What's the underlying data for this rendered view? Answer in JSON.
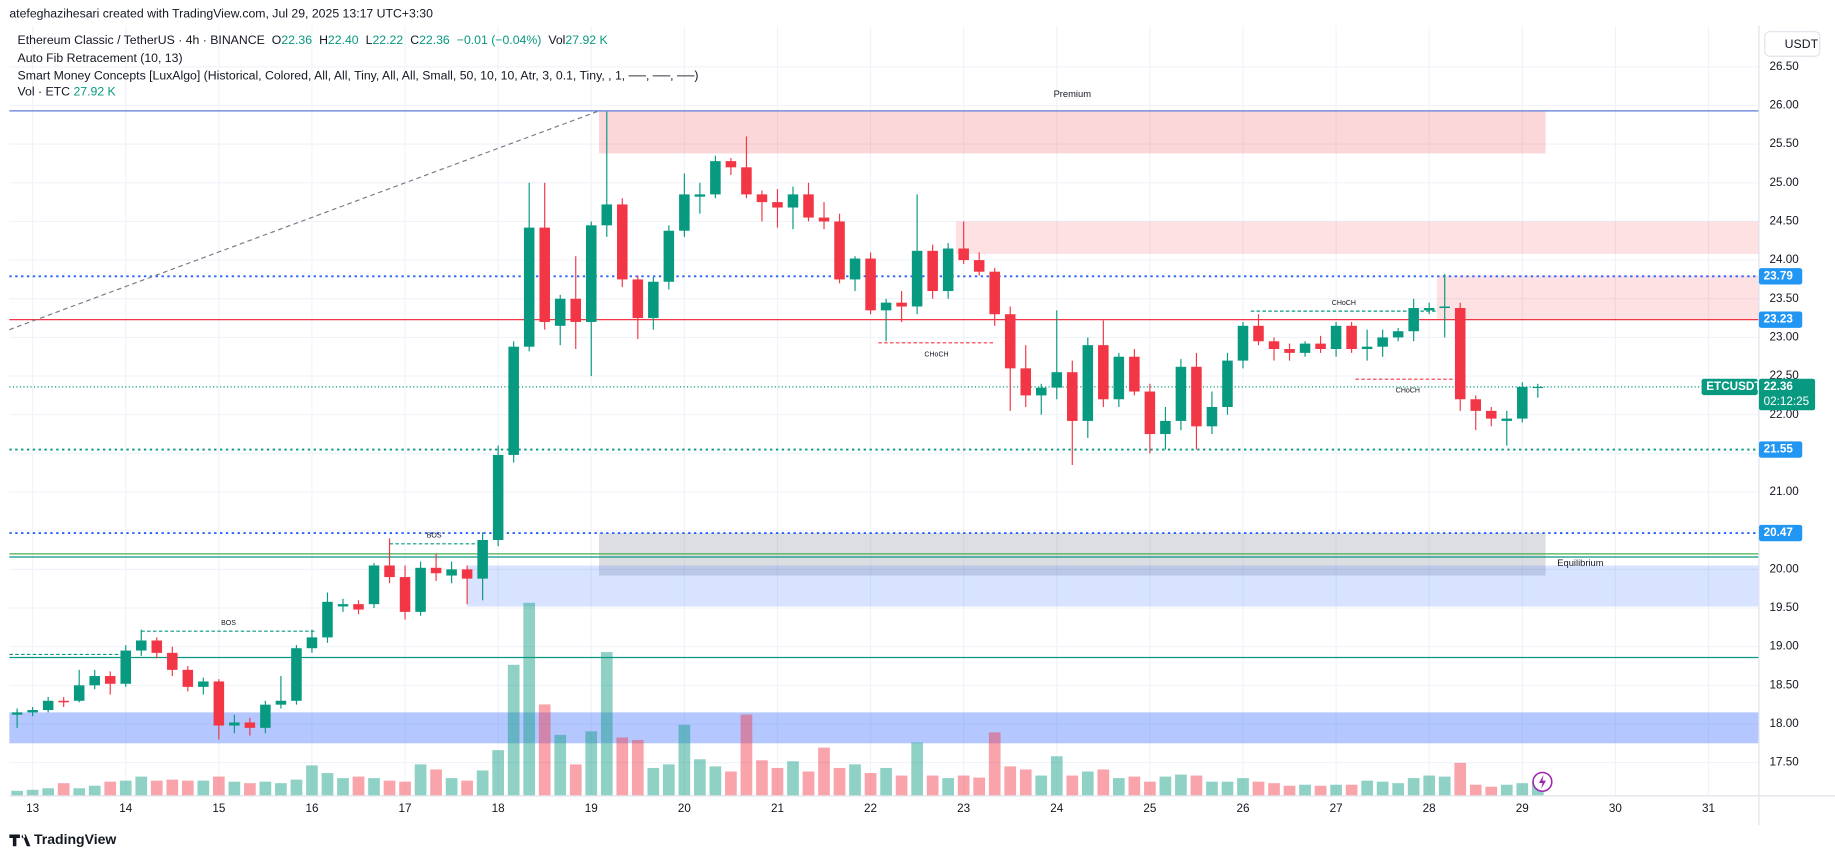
{
  "header": {
    "author_line": "atefeghazihesari created with TradingView.com, Jul 29, 2025 13:17 UTC+3:30",
    "symbol": "Ethereum Classic / TetherUS · 4h · BINANCE",
    "ohlc": [
      {
        "key": "O",
        "value": "22.36"
      },
      {
        "key": "H",
        "value": "22.40"
      },
      {
        "key": "L",
        "value": "22.22"
      },
      {
        "key": "C",
        "value": "22.36"
      }
    ],
    "change": "−0.01 (−0.04%)",
    "vol_key": "Vol",
    "vol_value": "27.92 K",
    "indicators": [
      "Auto Fib Retracement (10, 13)",
      "Smart Money Concepts [LuxAlgo] (Historical, Colored, All, All, Tiny, All, All, Small, 50, 10, 10, Atr, 3, 0.1, Tiny, , 1, ──, ──, ──)"
    ],
    "vol_indicator": {
      "name": "Vol · ETC",
      "value": "27.92 K"
    },
    "currency": "USDT",
    "footer": "TradingView"
  },
  "chart_data": {
    "type": "candlestick",
    "up_color": "#089981",
    "down_color": "#f23645",
    "tag_color": "#2196f3",
    "grid": true,
    "xlim": [
      -6,
      445
    ],
    "ylim": [
      17.07,
      27.03
    ],
    "xticks": [
      {
        "value": 0,
        "label": "13"
      },
      {
        "value": 24,
        "label": "14"
      },
      {
        "value": 48,
        "label": "15"
      },
      {
        "value": 72,
        "label": "16"
      },
      {
        "value": 96,
        "label": "17"
      },
      {
        "value": 120,
        "label": "18"
      },
      {
        "value": 144,
        "label": "19"
      },
      {
        "value": 168,
        "label": "20"
      },
      {
        "value": 192,
        "label": "21"
      },
      {
        "value": 216,
        "label": "22"
      },
      {
        "value": 240,
        "label": "23"
      },
      {
        "value": 264,
        "label": "24"
      },
      {
        "value": 288,
        "label": "25"
      },
      {
        "value": 312,
        "label": "26"
      },
      {
        "value": 336,
        "label": "27"
      },
      {
        "value": 360,
        "label": "28"
      },
      {
        "value": 384,
        "label": "29"
      },
      {
        "value": 408,
        "label": "30"
      },
      {
        "value": 432,
        "label": "31"
      }
    ],
    "yticks": [
      {
        "value": 17.5,
        "label": "17.50"
      },
      {
        "value": 18,
        "label": "18.00"
      },
      {
        "value": 18.5,
        "label": "18.50"
      },
      {
        "value": 19,
        "label": "19.00"
      },
      {
        "value": 19.5,
        "label": "19.50"
      },
      {
        "value": 20,
        "label": "20.00"
      },
      {
        "value": 20.5,
        "label": "20.50"
      },
      {
        "value": 21,
        "label": "21.00"
      },
      {
        "value": 21.5,
        "label": "21.50"
      },
      {
        "value": 22,
        "label": "22.00"
      },
      {
        "value": 22.5,
        "label": "22.50"
      },
      {
        "value": 23,
        "label": "23.00"
      },
      {
        "value": 23.5,
        "label": "23.50"
      },
      {
        "value": 24,
        "label": "24.00"
      },
      {
        "value": 24.5,
        "label": "24.50"
      },
      {
        "value": 25,
        "label": "25.00"
      },
      {
        "value": 25.5,
        "label": "25.50"
      },
      {
        "value": 26,
        "label": "26.00"
      },
      {
        "value": 26.5,
        "label": "26.50"
      }
    ],
    "x": [
      -4,
      0,
      4,
      8,
      12,
      16,
      20,
      24,
      28,
      32,
      36,
      40,
      44,
      48,
      52,
      56,
      60,
      64,
      68,
      72,
      76,
      80,
      84,
      88,
      92,
      96,
      100,
      104,
      108,
      112,
      116,
      120,
      124,
      128,
      132,
      136,
      140,
      144,
      148,
      152,
      156,
      160,
      164,
      168,
      172,
      176,
      180,
      184,
      188,
      192,
      196,
      200,
      204,
      208,
      212,
      216,
      220,
      224,
      228,
      232,
      236,
      240,
      244,
      248,
      252,
      256,
      260,
      264,
      268,
      272,
      276,
      280,
      284,
      288,
      292,
      296,
      300,
      304,
      308,
      312,
      316,
      320,
      324,
      328,
      332,
      336,
      340,
      344,
      348,
      352,
      356,
      360,
      364,
      368,
      372,
      376,
      380,
      384,
      388
    ],
    "open": [
      18.12,
      18.15,
      18.18,
      18.3,
      18.3,
      18.5,
      18.62,
      18.52,
      18.95,
      19.08,
      18.92,
      18.7,
      18.48,
      18.55,
      17.98,
      18.02,
      17.95,
      18.25,
      18.3,
      18.98,
      19.12,
      19.52,
      19.55,
      19.55,
      20.05,
      19.9,
      19.45,
      20.02,
      19.92,
      20.0,
      19.88,
      20.38,
      21.48,
      22.88,
      24.42,
      23.15,
      23.5,
      23.2,
      24.45,
      24.72,
      23.75,
      23.25,
      23.72,
      24.38,
      24.82,
      24.85,
      25.28,
      25.2,
      24.85,
      24.75,
      24.68,
      24.85,
      24.55,
      24.5,
      23.75,
      24.02,
      23.35,
      23.45,
      23.4,
      24.12,
      23.6,
      24.15,
      24.0,
      23.85,
      23.3,
      22.6,
      22.25,
      22.35,
      22.55,
      21.92,
      22.9,
      22.2,
      22.75,
      22.3,
      21.75,
      21.92,
      22.62,
      21.85,
      22.1,
      22.7,
      23.15,
      22.95,
      22.85,
      22.8,
      22.92,
      22.85,
      23.15,
      22.85,
      22.88,
      23.0,
      23.08,
      23.35,
      23.38,
      23.38,
      22.2,
      22.05,
      21.92,
      21.95,
      22.36
    ],
    "high": [
      18.2,
      18.22,
      18.35,
      18.35,
      18.7,
      18.7,
      18.68,
      19.02,
      19.22,
      19.12,
      19.0,
      18.75,
      18.6,
      18.58,
      18.12,
      18.08,
      18.3,
      18.62,
      19.02,
      19.22,
      19.7,
      19.62,
      19.6,
      20.08,
      20.4,
      20.05,
      20.1,
      20.2,
      20.1,
      20.05,
      20.48,
      21.6,
      22.95,
      25.0,
      25.0,
      23.55,
      24.05,
      24.5,
      25.92,
      24.8,
      23.8,
      23.78,
      24.45,
      25.12,
      25.0,
      25.35,
      25.32,
      25.6,
      24.9,
      24.92,
      24.95,
      25.0,
      24.75,
      24.6,
      24.05,
      24.1,
      23.5,
      23.6,
      24.85,
      24.2,
      24.22,
      24.5,
      24.1,
      23.9,
      23.4,
      22.9,
      22.4,
      23.35,
      22.7,
      23.0,
      23.22,
      22.8,
      22.85,
      22.4,
      22.1,
      22.72,
      22.8,
      22.3,
      22.8,
      23.2,
      23.3,
      23.0,
      22.92,
      22.95,
      23.02,
      23.2,
      23.2,
      23.1,
      23.1,
      23.12,
      23.5,
      23.45,
      23.82,
      23.45,
      22.25,
      22.1,
      22.05,
      22.42,
      22.4
    ],
    "low": [
      17.95,
      18.1,
      18.15,
      18.22,
      18.28,
      18.45,
      18.38,
      18.48,
      18.88,
      18.85,
      18.62,
      18.42,
      18.38,
      17.8,
      17.88,
      17.85,
      17.88,
      18.2,
      18.25,
      18.92,
      19.05,
      19.45,
      19.42,
      19.5,
      19.82,
      19.35,
      19.4,
      19.85,
      19.82,
      19.55,
      19.6,
      20.3,
      21.38,
      22.82,
      23.1,
      22.9,
      22.85,
      22.5,
      24.3,
      23.65,
      22.98,
      23.1,
      23.62,
      24.3,
      24.6,
      24.8,
      25.1,
      24.8,
      24.5,
      24.42,
      24.4,
      24.5,
      24.4,
      23.7,
      23.6,
      23.3,
      22.95,
      23.2,
      23.3,
      23.5,
      23.5,
      23.95,
      23.8,
      23.15,
      22.05,
      22.1,
      22.0,
      22.2,
      21.35,
      21.7,
      22.1,
      22.1,
      22.25,
      21.5,
      21.55,
      21.8,
      21.55,
      21.75,
      22.0,
      22.6,
      22.9,
      22.7,
      22.7,
      22.75,
      22.8,
      22.75,
      22.8,
      22.7,
      22.75,
      22.95,
      22.95,
      23.3,
      23.0,
      22.05,
      21.8,
      21.85,
      21.6,
      21.9,
      22.22
    ],
    "close": [
      18.15,
      18.18,
      18.3,
      18.28,
      18.5,
      18.62,
      18.52,
      18.95,
      19.08,
      18.92,
      18.7,
      18.48,
      18.55,
      17.98,
      18.02,
      17.95,
      18.25,
      18.3,
      18.98,
      19.12,
      19.58,
      19.55,
      19.48,
      20.05,
      19.9,
      19.45,
      20.02,
      19.95,
      20.0,
      19.88,
      20.38,
      21.48,
      22.88,
      24.42,
      23.2,
      23.5,
      23.2,
      24.45,
      24.72,
      23.75,
      23.25,
      23.72,
      24.38,
      24.85,
      24.85,
      25.28,
      25.2,
      24.85,
      24.75,
      24.68,
      24.85,
      24.55,
      24.5,
      23.75,
      24.02,
      23.35,
      23.45,
      23.4,
      24.12,
      23.6,
      24.15,
      24.0,
      23.85,
      23.3,
      22.6,
      22.25,
      22.35,
      22.55,
      21.92,
      22.9,
      22.2,
      22.75,
      22.3,
      21.75,
      21.92,
      22.62,
      21.85,
      22.1,
      22.7,
      23.15,
      22.95,
      22.85,
      22.8,
      22.92,
      22.85,
      23.15,
      22.85,
      22.88,
      23.0,
      23.08,
      23.38,
      23.38,
      23.4,
      22.2,
      22.05,
      21.95,
      21.95,
      22.36,
      22.36
    ],
    "volume": [
      10,
      12,
      15,
      25,
      15,
      20,
      28,
      30,
      38,
      30,
      32,
      30,
      30,
      38,
      28,
      25,
      28,
      25,
      32,
      60,
      45,
      35,
      38,
      35,
      30,
      28,
      62,
      52,
      35,
      30,
      50,
      90,
      258,
      380,
      180,
      120,
      62,
      127,
      283,
      115,
      110,
      55,
      62,
      140,
      72,
      58,
      48,
      160,
      70,
      55,
      68,
      48,
      95,
      55,
      62,
      45,
      55,
      40,
      105,
      40,
      35,
      40,
      36,
      125,
      58,
      52,
      40,
      78,
      40,
      48,
      52,
      35,
      38,
      28,
      38,
      42,
      40,
      28,
      28,
      35,
      28,
      25,
      20,
      22,
      20,
      22,
      22,
      30,
      28,
      25,
      35,
      40,
      38,
      65,
      22,
      18,
      22,
      25,
      27.92
    ],
    "zones": [
      {
        "x": [
          146,
          390
        ],
        "y": [
          25.38,
          25.93
        ],
        "color": "rgba(242,54,69,0.2)",
        "label": "Premium",
        "label_color": "#f23645",
        "label_pos": "top"
      },
      {
        "x": [
          238,
          445
        ],
        "y": [
          24.08,
          24.5
        ],
        "color": "rgba(242,54,69,0.15)"
      },
      {
        "x": [
          362,
          445
        ],
        "y": [
          23.23,
          23.8
        ],
        "color": "rgba(242,54,69,0.15)"
      },
      {
        "x": [
          146,
          390
        ],
        "y": [
          19.92,
          20.47
        ],
        "color": "rgba(120,123,134,0.25)",
        "label": "Equilibrium",
        "label_color": "#9598a1",
        "label_pos": "right"
      },
      {
        "x": [
          112,
          445
        ],
        "y": [
          19.52,
          20.05
        ],
        "color": "rgba(41,98,255,0.18)"
      },
      {
        "x": [
          -6,
          445
        ],
        "y": [
          17.75,
          18.15
        ],
        "color": "rgba(41,98,255,0.35)"
      }
    ],
    "levels": [
      {
        "price": 25.93,
        "color": "#5b7bd5",
        "style": "solid"
      },
      {
        "price": 23.79,
        "color": "#2962ff",
        "style": "dotted",
        "tag": true
      },
      {
        "price": 23.23,
        "color": "#f23645",
        "style": "solid",
        "tag": true
      },
      {
        "price": 21.55,
        "color": "#089981",
        "style": "dotted",
        "tag": true
      },
      {
        "price": 20.47,
        "color": "#2962ff",
        "style": "dotted",
        "tag": true
      },
      {
        "price": 20.2,
        "color": "#4caf50",
        "style": "solid"
      },
      {
        "price": 20.16,
        "color": "#089981",
        "style": "solid"
      },
      {
        "price": 18.86,
        "color": "#089981",
        "style": "solid"
      }
    ],
    "current": {
      "name": "ETCUSDT",
      "price": 22.36,
      "countdown": "02:12:25",
      "color": "#089981"
    },
    "fib_trend": {
      "x": [
        -6,
        146
      ],
      "y": [
        23.1,
        25.93
      ],
      "color": "#787b86"
    },
    "structures": [
      {
        "x": [
          -6,
          24
        ],
        "price": 18.9,
        "color": "#089981"
      },
      {
        "x": [
          28,
          73
        ],
        "price": 19.2,
        "color": "#089981",
        "label": "BOS",
        "label_side": "above"
      },
      {
        "x": [
          92,
          115
        ],
        "price": 20.33,
        "color": "#089981",
        "label": "BOS",
        "label_side": "above"
      },
      {
        "x": [
          218,
          248
        ],
        "price": 22.93,
        "color": "#f23645",
        "label": "CHoCH",
        "label_side": "below"
      },
      {
        "x": [
          314,
          362
        ],
        "price": 23.34,
        "color": "#089981",
        "label": "CHoCH",
        "label_side": "above"
      },
      {
        "x": [
          341,
          368
        ],
        "price": 22.46,
        "color": "#f23645",
        "label": "CHoCH",
        "label_side": "below"
      }
    ]
  }
}
